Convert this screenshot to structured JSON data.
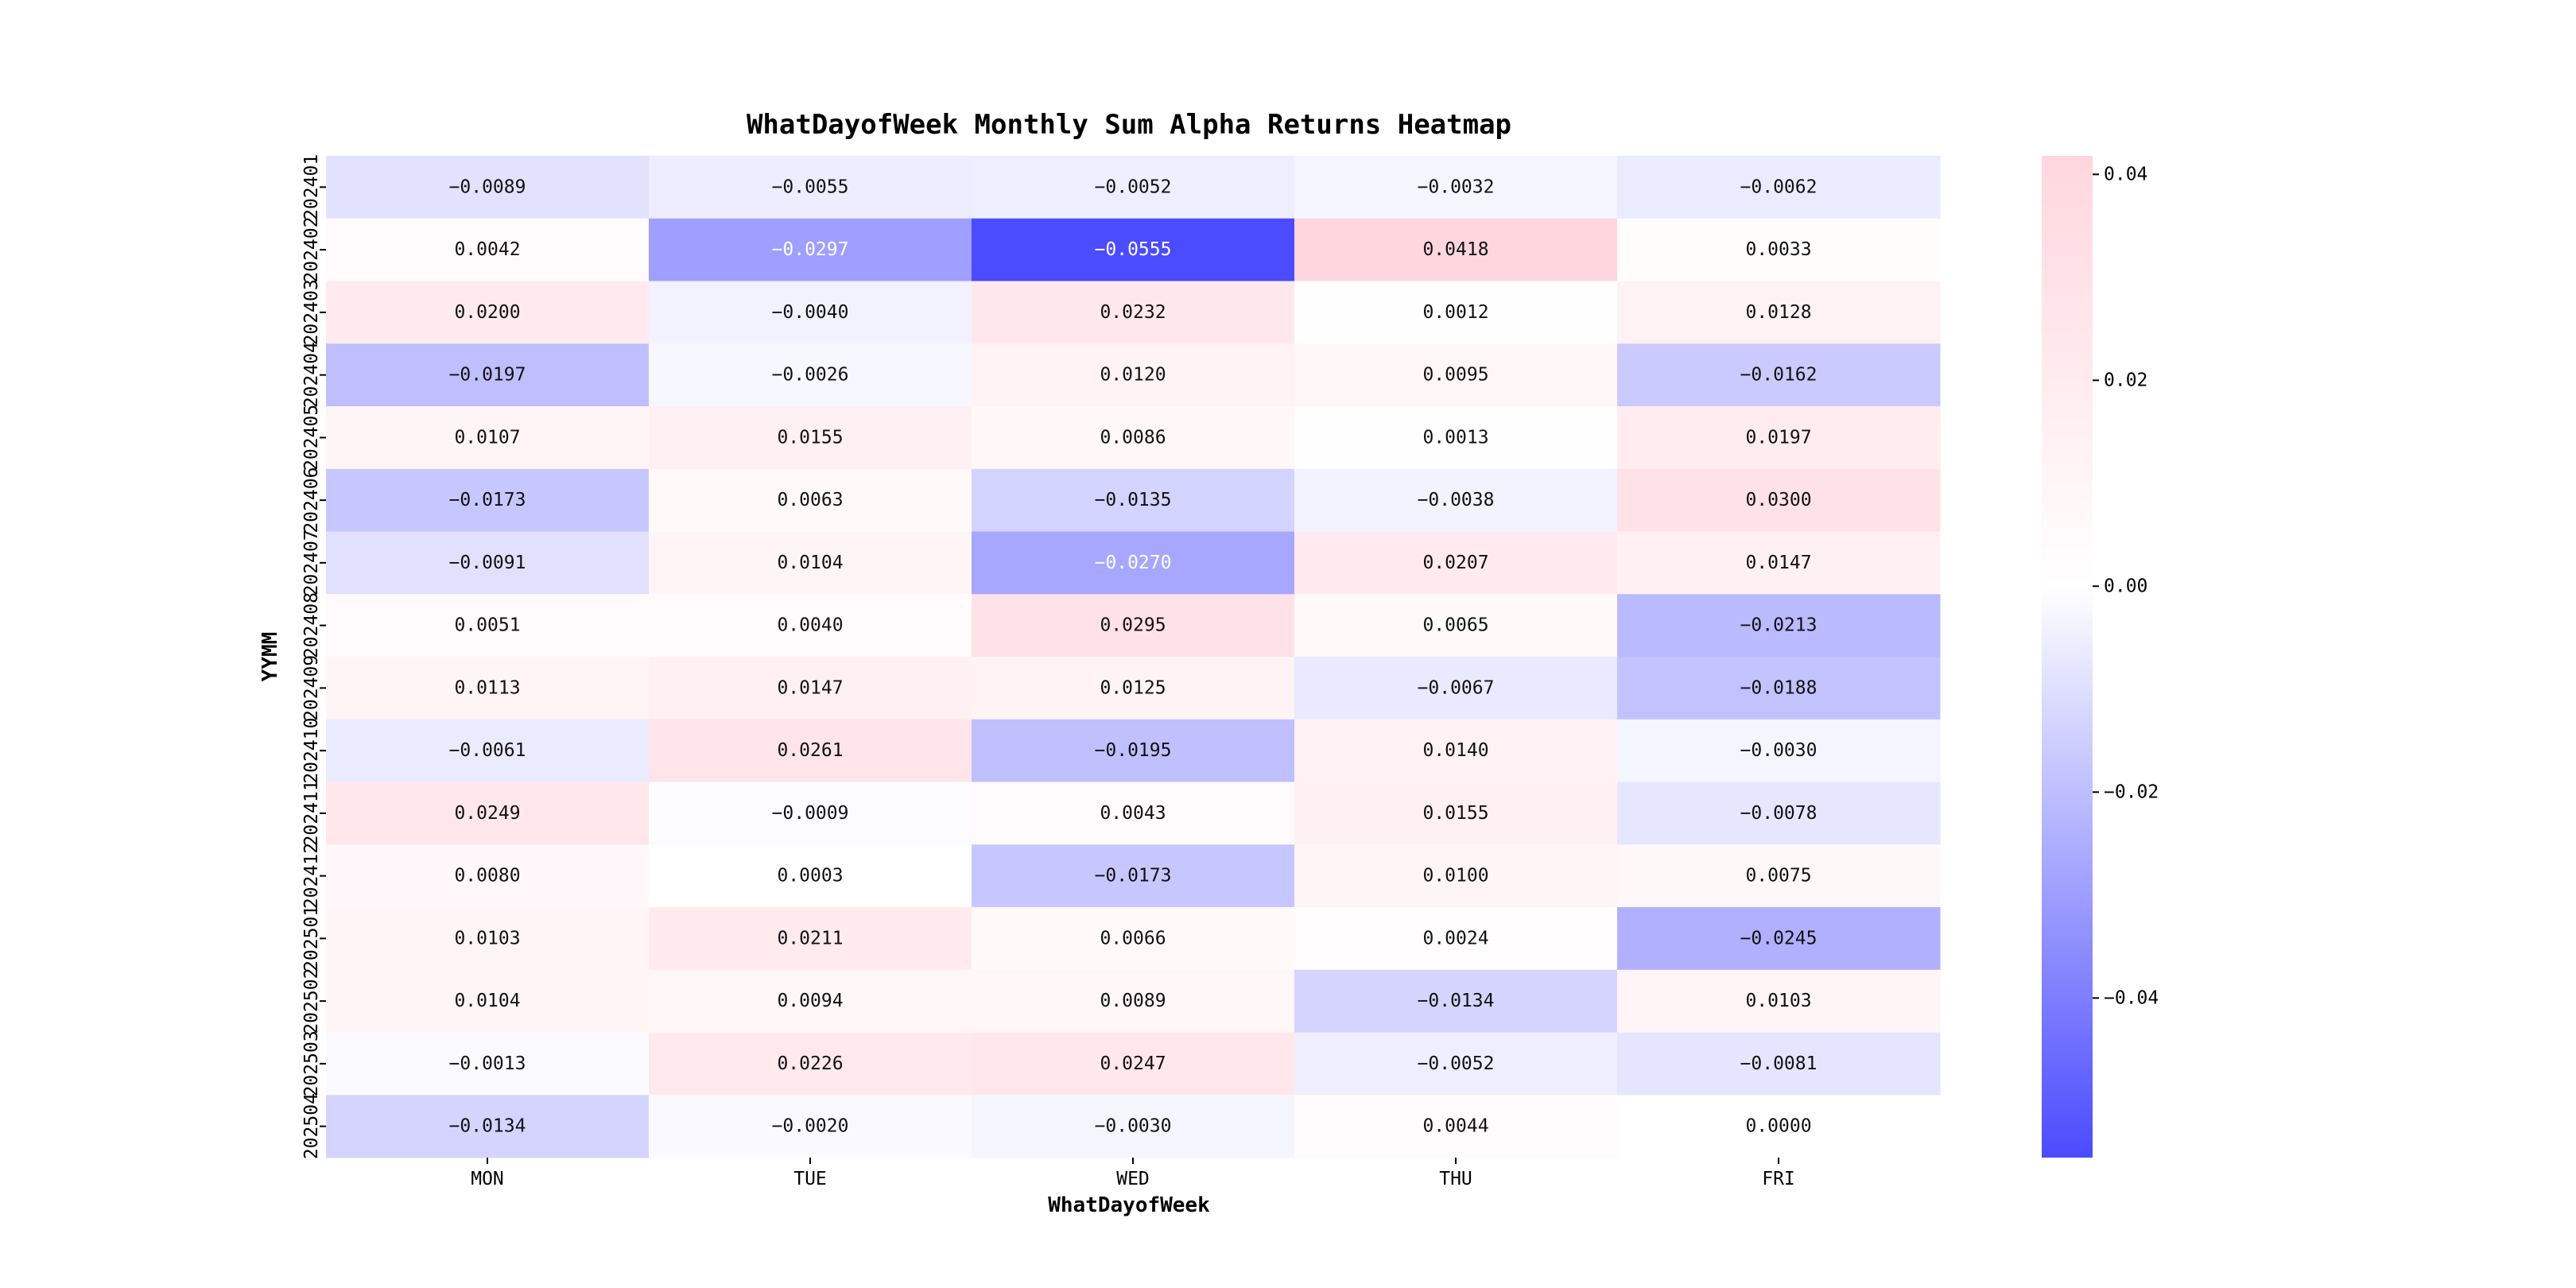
{
  "chart_data": {
    "type": "heatmap",
    "title": "WhatDayofWeek Monthly Sum Alpha Returns Heatmap",
    "xlabel": "WhatDayofWeek",
    "ylabel": "YYMM",
    "columns": [
      "MON",
      "TUE",
      "WED",
      "THU",
      "FRI"
    ],
    "rows": [
      "202401",
      "202402",
      "202403",
      "202404",
      "202405",
      "202406",
      "202407",
      "202408",
      "202409",
      "202410",
      "202411",
      "202412",
      "202501",
      "202502",
      "202503",
      "202504"
    ],
    "values": [
      [
        -0.0089,
        -0.0055,
        -0.0052,
        -0.0032,
        -0.0062
      ],
      [
        0.0042,
        -0.0297,
        -0.0555,
        0.0418,
        0.0033
      ],
      [
        0.02,
        -0.004,
        0.0232,
        0.0012,
        0.0128
      ],
      [
        -0.0197,
        -0.0026,
        0.012,
        0.0095,
        -0.0162
      ],
      [
        0.0107,
        0.0155,
        0.0086,
        0.0013,
        0.0197
      ],
      [
        -0.0173,
        0.0063,
        -0.0135,
        -0.0038,
        0.03
      ],
      [
        -0.0091,
        0.0104,
        -0.027,
        0.0207,
        0.0147
      ],
      [
        0.0051,
        0.004,
        0.0295,
        0.0065,
        -0.0213
      ],
      [
        0.0113,
        0.0147,
        0.0125,
        -0.0067,
        -0.0188
      ],
      [
        -0.0061,
        0.0261,
        -0.0195,
        0.014,
        -0.003
      ],
      [
        0.0249,
        -0.0009,
        0.0043,
        0.0155,
        -0.0078
      ],
      [
        0.008,
        0.0003,
        -0.0173,
        0.01,
        0.0075
      ],
      [
        0.0103,
        0.0211,
        0.0066,
        0.0024,
        -0.0245
      ],
      [
        0.0104,
        0.0094,
        0.0089,
        -0.0134,
        0.0103
      ],
      [
        -0.0013,
        0.0226,
        0.0247,
        -0.0052,
        -0.0081
      ],
      [
        -0.0134,
        -0.002,
        -0.003,
        0.0044,
        0.0
      ]
    ],
    "value_format": "0.0000",
    "colorbar": {
      "vmin": -0.0555,
      "vmax": 0.0418,
      "ticks": [
        0.04,
        0.02,
        0.0,
        -0.02,
        -0.04
      ],
      "tick_labels": [
        "0.04",
        "0.02",
        "0.00",
        "−0.02",
        "−0.04"
      ],
      "colors": {
        "min": "#4b4bff",
        "mid": "#ffffff",
        "max": "#ffd6de"
      }
    },
    "grid": false
  }
}
